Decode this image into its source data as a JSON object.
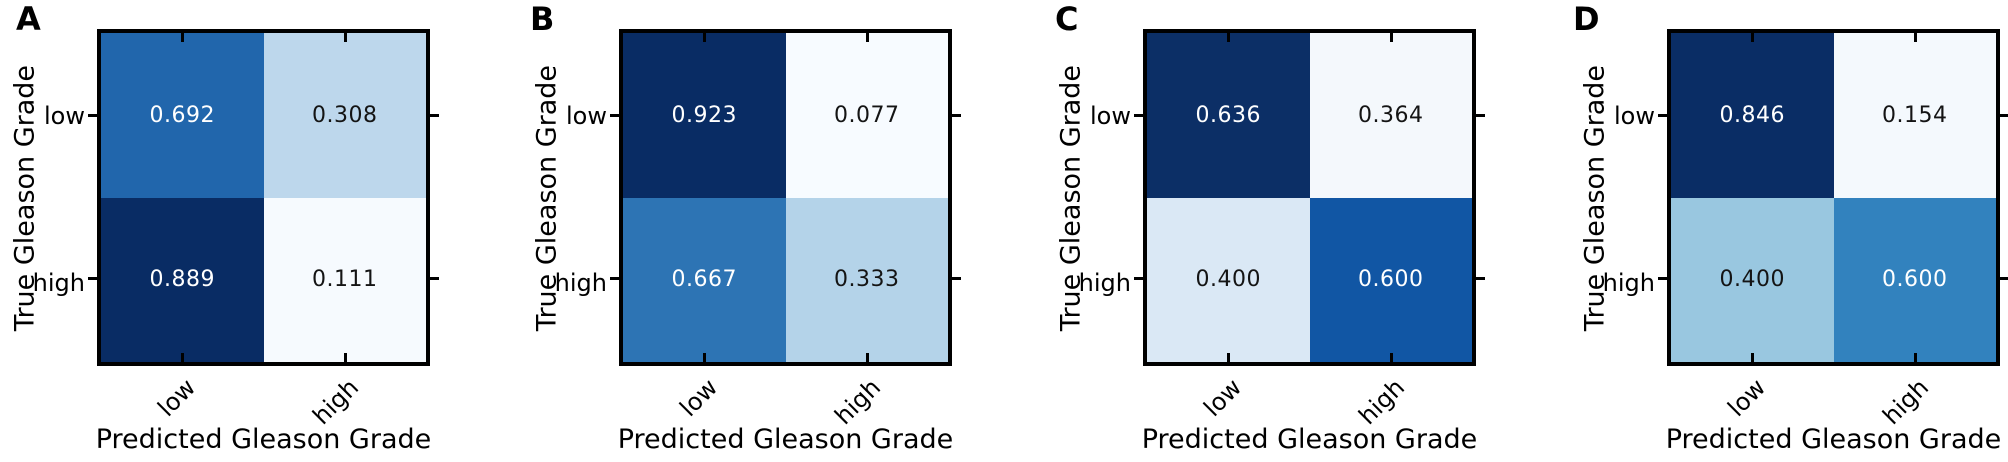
{
  "figure": {
    "background": "#ffffff",
    "colormap": "Blues",
    "axis": {
      "xlabel": "Predicted Gleason Grade",
      "ylabel": "True Gleason Grade",
      "x_tick_labels": [
        "low",
        "high"
      ],
      "y_tick_labels": [
        "low",
        "high"
      ]
    }
  },
  "panels": [
    {
      "letter": "A",
      "cells": [
        [
          "0.692",
          "0.308"
        ],
        [
          "0.889",
          "0.111"
        ]
      ],
      "cell_colors": [
        [
          "#2166ac",
          "#bdd7ec"
        ],
        [
          "#092c64",
          "#f6fafe"
        ]
      ],
      "text_colors": [
        [
          "#ffffff",
          "#141414"
        ],
        [
          "#ffffff",
          "#141414"
        ]
      ]
    },
    {
      "letter": "B",
      "cells": [
        [
          "0.923",
          "0.077"
        ],
        [
          "0.667",
          "0.333"
        ]
      ],
      "cell_colors": [
        [
          "#092c64",
          "#f7fbff"
        ],
        [
          "#2d74b4",
          "#b4d3e9"
        ]
      ],
      "text_colors": [
        [
          "#ffffff",
          "#141414"
        ],
        [
          "#ffffff",
          "#141414"
        ]
      ]
    },
    {
      "letter": "C",
      "cells": [
        [
          "0.636",
          "0.364"
        ],
        [
          "0.400",
          "0.600"
        ]
      ],
      "cell_colors": [
        [
          "#0c2f66",
          "#f4f8fc"
        ],
        [
          "#dae8f5",
          "#1156a4"
        ]
      ],
      "text_colors": [
        [
          "#ffffff",
          "#141414"
        ],
        [
          "#141414",
          "#ffffff"
        ]
      ]
    },
    {
      "letter": "D",
      "cells": [
        [
          "0.846",
          "0.154"
        ],
        [
          "0.400",
          "0.600"
        ]
      ],
      "cell_colors": [
        [
          "#0a2d65",
          "#f4f9fd"
        ],
        [
          "#99c7e0",
          "#3282be"
        ]
      ],
      "text_colors": [
        [
          "#ffffff",
          "#141414"
        ],
        [
          "#141414",
          "#ffffff"
        ]
      ]
    }
  ],
  "chart_data": [
    {
      "type": "heatmap",
      "panel": "A",
      "x_categories": [
        "low",
        "high"
      ],
      "y_categories": [
        "low",
        "high"
      ],
      "values": [
        [
          0.692,
          0.308
        ],
        [
          0.889,
          0.111
        ]
      ],
      "xlabel": "Predicted Gleason Grade",
      "ylabel": "True Gleason Grade",
      "colormap": "Blues",
      "value_range": [
        0.111,
        0.889
      ],
      "grid": false,
      "legend": false
    },
    {
      "type": "heatmap",
      "panel": "B",
      "x_categories": [
        "low",
        "high"
      ],
      "y_categories": [
        "low",
        "high"
      ],
      "values": [
        [
          0.923,
          0.077
        ],
        [
          0.667,
          0.333
        ]
      ],
      "xlabel": "Predicted Gleason Grade",
      "ylabel": "True Gleason Grade",
      "colormap": "Blues",
      "value_range": [
        0.077,
        0.923
      ],
      "grid": false,
      "legend": false
    },
    {
      "type": "heatmap",
      "panel": "C",
      "x_categories": [
        "low",
        "high"
      ],
      "y_categories": [
        "low",
        "high"
      ],
      "values": [
        [
          0.636,
          0.364
        ],
        [
          0.4,
          0.6
        ]
      ],
      "xlabel": "Predicted Gleason Grade",
      "ylabel": "True Gleason Grade",
      "colormap": "Blues",
      "value_range": [
        0.364,
        0.636
      ],
      "grid": false,
      "legend": false
    },
    {
      "type": "heatmap",
      "panel": "D",
      "x_categories": [
        "low",
        "high"
      ],
      "y_categories": [
        "low",
        "high"
      ],
      "values": [
        [
          0.846,
          0.154
        ],
        [
          0.4,
          0.6
        ]
      ],
      "xlabel": "Predicted Gleason Grade",
      "ylabel": "True Gleason Grade",
      "colormap": "Blues",
      "value_range": [
        0.154,
        0.846
      ],
      "grid": false,
      "legend": false
    }
  ]
}
